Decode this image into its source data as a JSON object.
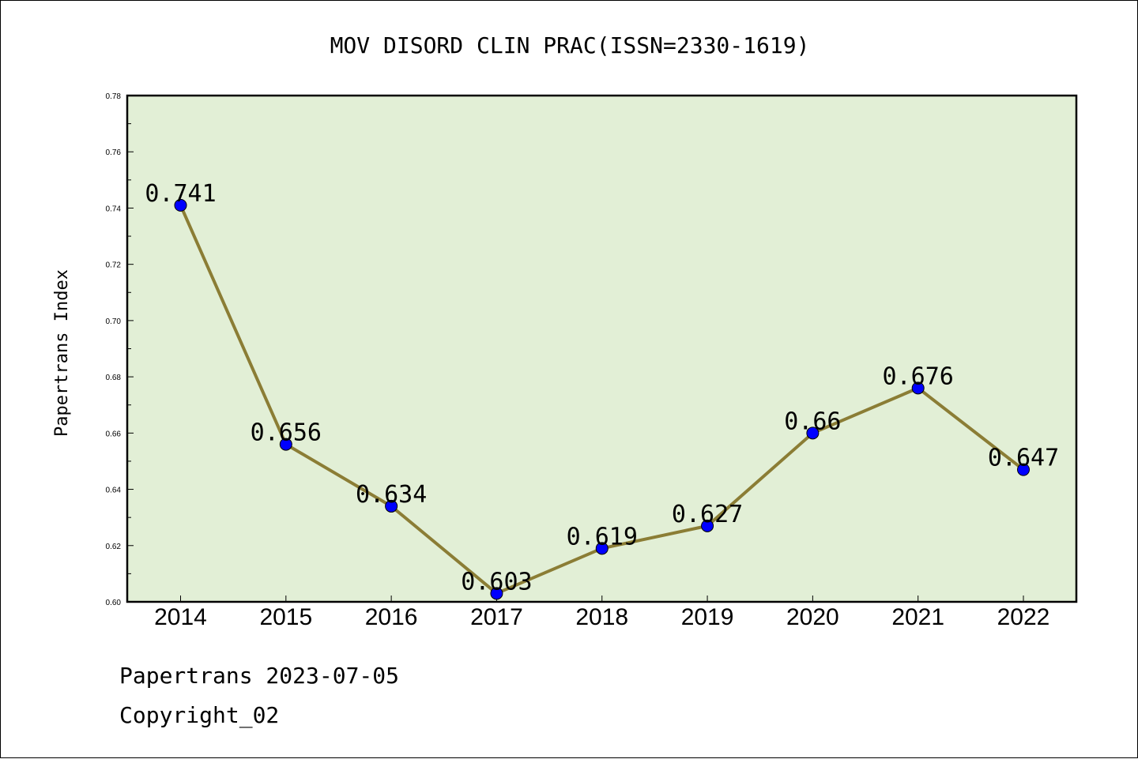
{
  "chart_data": {
    "type": "line",
    "title": "MOV DISORD CLIN PRAC(ISSN=2330-1619)",
    "xlabel": "",
    "ylabel": "Papertrans Index",
    "categories": [
      "2014",
      "2015",
      "2016",
      "2017",
      "2018",
      "2019",
      "2020",
      "2021",
      "2022"
    ],
    "series": [
      {
        "values": [
          0.741,
          0.656,
          0.634,
          0.603,
          0.619,
          0.627,
          0.66,
          0.676,
          0.647
        ],
        "labels": [
          "0.741",
          "0.656",
          "0.634",
          "0.603",
          "0.619",
          "0.627",
          "0.66",
          "0.676",
          "0.647"
        ]
      }
    ],
    "ylim": [
      0.6,
      0.78
    ],
    "yticks": [
      "0.60",
      "0.62",
      "0.64",
      "0.66",
      "0.68",
      "0.70",
      "0.72",
      "0.74",
      "0.76",
      "0.78"
    ],
    "grid": false,
    "colors": {
      "plot_background": "#e2efd6",
      "line": "#8b7d35",
      "marker": "#0000ff"
    }
  },
  "footer": {
    "line1": "Papertrans 2023-07-05",
    "line2": "Copyright_02"
  }
}
